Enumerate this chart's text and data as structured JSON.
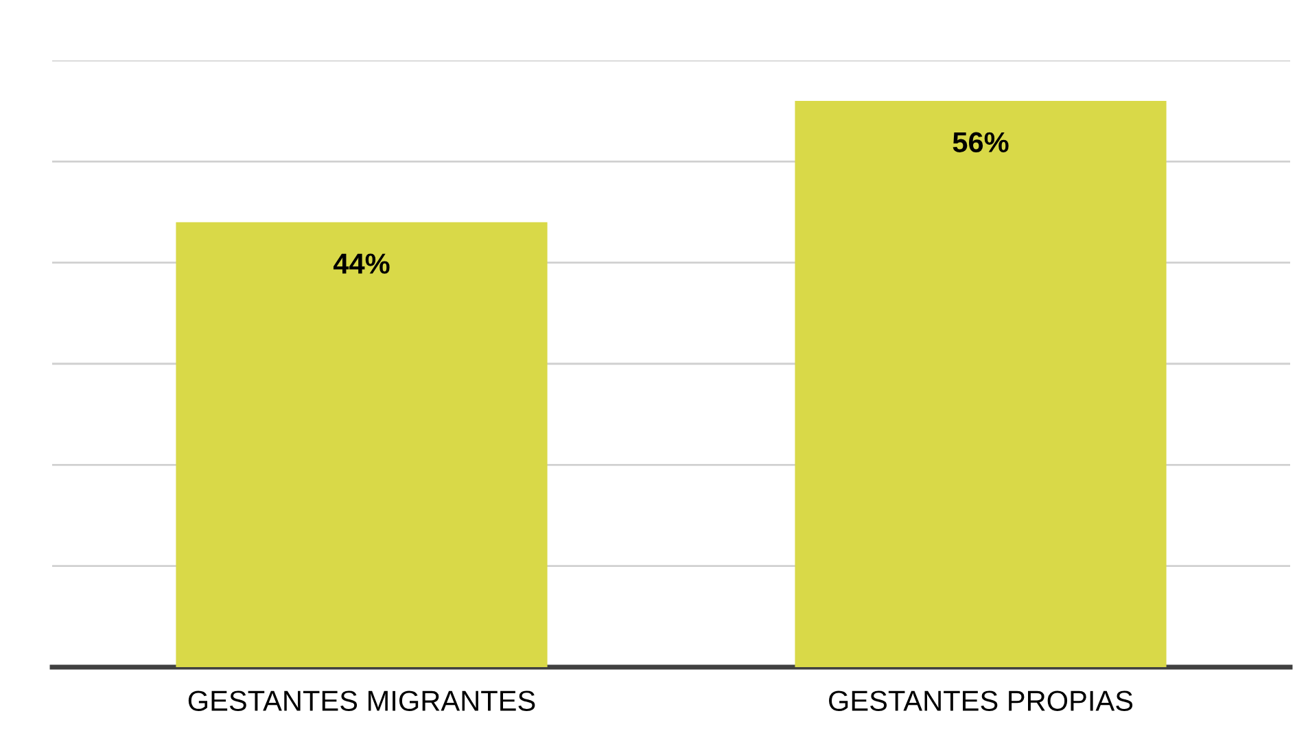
{
  "chart_data": {
    "type": "bar",
    "categories": [
      "GESTANTES MIGRANTES",
      "GESTANTES PROPIAS"
    ],
    "values": [
      44,
      56
    ],
    "value_labels": [
      "44%",
      "56%"
    ],
    "color": "#d9d948",
    "ylim": [
      0,
      60
    ],
    "yticks": [
      {
        "value": 0,
        "label": null
      },
      {
        "value": 10,
        "label": null
      },
      {
        "value": 20,
        "label": null
      },
      {
        "value": 30,
        "label": null
      },
      {
        "value": 40,
        "label": null
      },
      {
        "value": 50,
        "label": null
      },
      {
        "value": 60,
        "label": null
      }
    ],
    "grid": "y",
    "tick_labels": "x"
  }
}
